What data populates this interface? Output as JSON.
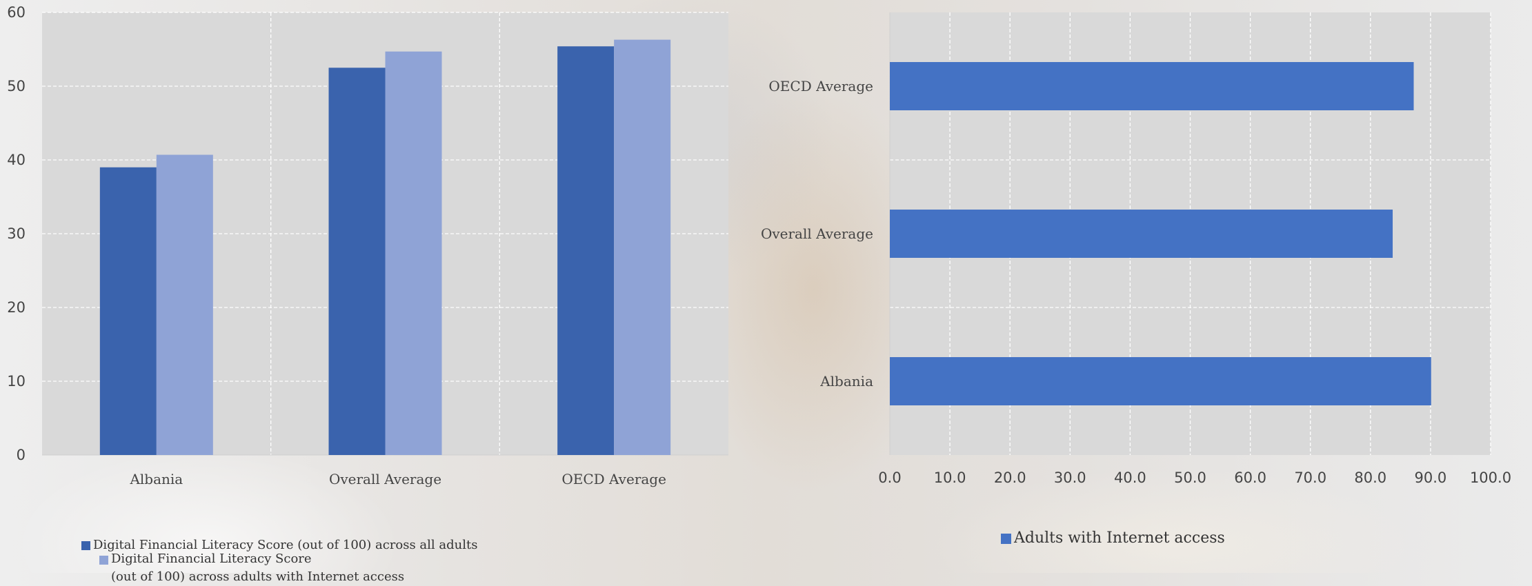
{
  "chart_data": [
    {
      "type": "bar",
      "orientation": "vertical",
      "categories": [
        "Albania",
        "Overall Average",
        "OECD Average"
      ],
      "series": [
        {
          "name": "Digital Financial Literacy Score (out of 100) across all adults",
          "values": [
            39,
            52.5,
            55.4
          ],
          "color": "#3A63AD"
        },
        {
          "name": "Digital Financial Literacy Score (out of 100) across adults with Internet access",
          "values": [
            40.7,
            54.7,
            56.3
          ],
          "color": "#8FA3D6"
        }
      ],
      "ylim": [
        0,
        60
      ],
      "yticks": [
        "0",
        "10",
        "20",
        "30",
        "40",
        "50",
        "60"
      ],
      "grid": true,
      "legend_position": "bottom"
    },
    {
      "type": "bar",
      "orientation": "horizontal",
      "categories": [
        "OECD Average",
        "Overall Average",
        "Albania"
      ],
      "series": [
        {
          "name": "Adults with Internet access",
          "values": [
            87.2,
            83.7,
            90.1
          ],
          "color": "#4472C4"
        }
      ],
      "xlim": [
        0,
        100
      ],
      "xticks": [
        "0.0",
        "10.0",
        "20.0",
        "30.0",
        "40.0",
        "50.0",
        "60.0",
        "70.0",
        "80.0",
        "90.0",
        "100.0"
      ],
      "grid": true,
      "legend_position": "bottom"
    }
  ],
  "legends": {
    "left": [
      {
        "label_line1": "Digital Financial Literacy Score (out of 100) across all adults",
        "label_line2": ""
      },
      {
        "label_line1": "Digital Financial Literacy Score",
        "label_line2": "(out of 100) across adults with Internet access"
      }
    ],
    "right": [
      {
        "label": "Adults with Internet access"
      }
    ]
  }
}
